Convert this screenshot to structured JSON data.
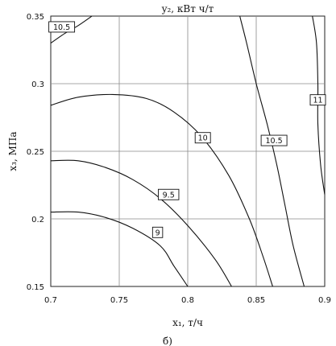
{
  "chart_data": {
    "type": "contour",
    "title": "y₂, кВт ч/т",
    "xlabel": "x₁, т/ч",
    "ylabel": "x₃, МПа",
    "xlim": [
      0.7,
      0.9
    ],
    "ylim": [
      0.15,
      0.35
    ],
    "x_ticks": [
      "0.7",
      "0.75",
      "0.8",
      "0.85",
      "0.9"
    ],
    "y_ticks": [
      "0.15",
      "0.2",
      "0.25",
      "0.3",
      "0.35"
    ],
    "grid": true,
    "contours": [
      {
        "level": "9",
        "points": [
          [
            0.7,
            0.205
          ],
          [
            0.72,
            0.205
          ],
          [
            0.74,
            0.201
          ],
          [
            0.76,
            0.193
          ],
          [
            0.78,
            0.18
          ],
          [
            0.79,
            0.165
          ],
          [
            0.8,
            0.15
          ]
        ],
        "label_at": [
          0.778,
          0.19
        ]
      },
      {
        "level": "9.5",
        "points": [
          [
            0.7,
            0.243
          ],
          [
            0.72,
            0.243
          ],
          [
            0.74,
            0.238
          ],
          [
            0.76,
            0.229
          ],
          [
            0.78,
            0.215
          ],
          [
            0.8,
            0.195
          ],
          [
            0.82,
            0.17
          ],
          [
            0.832,
            0.15
          ]
        ],
        "label_at": [
          0.786,
          0.218
        ]
      },
      {
        "level": "10",
        "points": [
          [
            0.7,
            0.284
          ],
          [
            0.72,
            0.29
          ],
          [
            0.745,
            0.292
          ],
          [
            0.77,
            0.289
          ],
          [
            0.79,
            0.279
          ],
          [
            0.81,
            0.261
          ],
          [
            0.83,
            0.232
          ],
          [
            0.845,
            0.2
          ],
          [
            0.855,
            0.172
          ],
          [
            0.862,
            0.15
          ]
        ],
        "label_at": [
          0.811,
          0.26
        ]
      },
      {
        "level": "10.5",
        "points": [
          [
            0.7,
            0.33
          ],
          [
            0.71,
            0.337
          ],
          [
            0.72,
            0.343
          ],
          [
            0.73,
            0.35
          ]
        ],
        "label_at": [
          0.708,
          0.342
        ]
      },
      {
        "level": "10.5",
        "points": [
          [
            0.838,
            0.35
          ],
          [
            0.843,
            0.33
          ],
          [
            0.85,
            0.3
          ],
          [
            0.858,
            0.27
          ],
          [
            0.865,
            0.24
          ],
          [
            0.871,
            0.21
          ],
          [
            0.877,
            0.18
          ],
          [
            0.885,
            0.15
          ]
        ],
        "label_at": [
          0.863,
          0.258
        ]
      },
      {
        "level": "11",
        "points": [
          [
            0.891,
            0.35
          ],
          [
            0.894,
            0.33
          ],
          [
            0.895,
            0.3
          ],
          [
            0.895,
            0.27
          ],
          [
            0.897,
            0.24
          ],
          [
            0.9,
            0.218
          ]
        ],
        "label_at": [
          0.895,
          0.288
        ]
      }
    ]
  },
  "caption": "б)"
}
